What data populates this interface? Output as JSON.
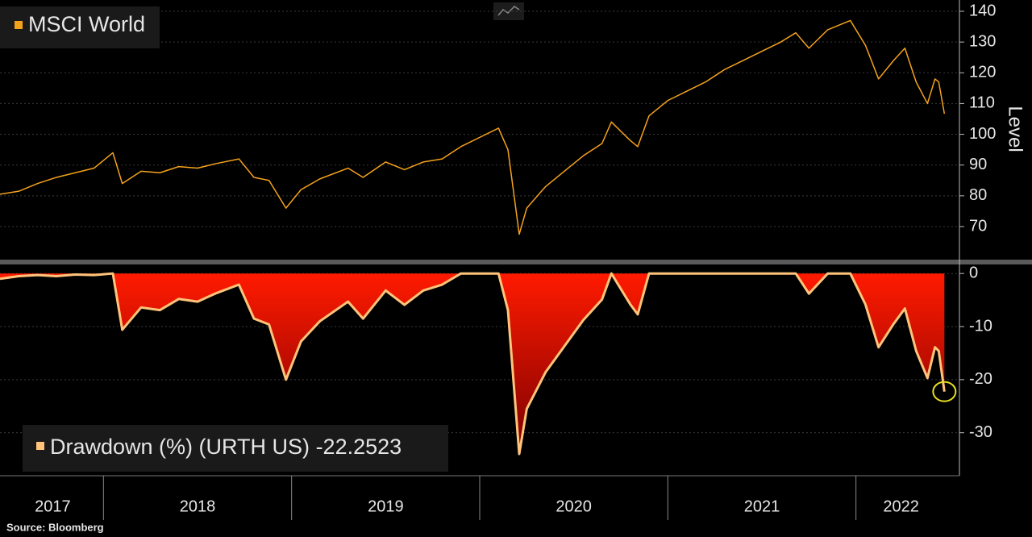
{
  "chart_data": [
    {
      "type": "line",
      "title": "MSCI World",
      "ylabel": "Level",
      "color": "#f5a21b",
      "grid": true,
      "x": [
        2017.45,
        2017.55,
        2017.65,
        2017.75,
        2017.85,
        2017.95,
        2018.05,
        2018.1,
        2018.2,
        2018.3,
        2018.4,
        2018.5,
        2018.6,
        2018.72,
        2018.8,
        2018.88,
        2018.97,
        2019.05,
        2019.15,
        2019.3,
        2019.38,
        2019.5,
        2019.6,
        2019.7,
        2019.8,
        2019.9,
        2020.0,
        2020.1,
        2020.15,
        2020.21,
        2020.25,
        2020.35,
        2020.45,
        2020.55,
        2020.65,
        2020.7,
        2020.8,
        2020.84,
        2020.9,
        2021.0,
        2021.1,
        2021.2,
        2021.3,
        2021.4,
        2021.5,
        2021.6,
        2021.68,
        2021.75,
        2021.85,
        2021.97,
        2022.05,
        2022.12,
        2022.2,
        2022.26,
        2022.32,
        2022.38,
        2022.42,
        2022.44,
        2022.47
      ],
      "values": [
        80.5,
        81.5,
        84,
        86,
        87.5,
        89,
        94,
        84,
        88,
        87.5,
        89.5,
        89,
        90.5,
        92,
        86,
        85,
        76,
        82,
        85.5,
        89,
        86,
        91,
        88.5,
        91,
        92,
        96,
        99,
        102,
        95,
        67.5,
        76,
        83,
        88,
        93,
        97,
        104,
        98,
        96,
        106,
        111,
        114,
        117,
        121,
        124,
        127,
        130,
        133,
        128,
        134,
        137,
        129,
        118,
        124,
        128,
        117,
        110,
        118,
        117,
        106.7
      ],
      "xlim": [
        2017.45,
        2022.55
      ],
      "ylim": [
        59.25,
        143.67
      ],
      "yticks": [
        70,
        80,
        90,
        100,
        110,
        120,
        130,
        140
      ]
    },
    {
      "type": "area",
      "color": "#ffc47a",
      "fill_color": "#ff0000",
      "grid": true,
      "x": [
        2017.45,
        2017.55,
        2017.65,
        2017.75,
        2017.85,
        2017.95,
        2018.05,
        2018.1,
        2018.2,
        2018.3,
        2018.4,
        2018.5,
        2018.6,
        2018.72,
        2018.8,
        2018.88,
        2018.97,
        2019.05,
        2019.15,
        2019.3,
        2019.38,
        2019.5,
        2019.6,
        2019.7,
        2019.8,
        2019.9,
        2020.0,
        2020.1,
        2020.15,
        2020.21,
        2020.25,
        2020.35,
        2020.45,
        2020.55,
        2020.65,
        2020.7,
        2020.8,
        2020.84,
        2020.9,
        2021.0,
        2021.1,
        2021.2,
        2021.3,
        2021.4,
        2021.5,
        2021.6,
        2021.68,
        2021.75,
        2021.85,
        2021.97,
        2022.05,
        2022.12,
        2022.2,
        2022.26,
        2022.32,
        2022.38,
        2022.42,
        2022.44,
        2022.47
      ],
      "series": [
        {
          "name": "Drawdown (%) (URTH US)",
          "values": [
            -1,
            -0.5,
            -0.3,
            -0.5,
            -0.2,
            -0.3,
            0,
            -10.6,
            -6.4,
            -6.9,
            -4.8,
            -5.3,
            -3.7,
            -2.1,
            -8.5,
            -9.6,
            -20,
            -12.8,
            -9,
            -5.3,
            -8.5,
            -3.2,
            -5.9,
            -3.2,
            -2.1,
            0,
            0,
            0,
            -6.9,
            -34,
            -25.5,
            -18.6,
            -13.7,
            -8.8,
            -4.9,
            0,
            -5.8,
            -7.7,
            0,
            0,
            0,
            0,
            0,
            0,
            0,
            0,
            0,
            -3.8,
            0,
            0,
            -5.8,
            -13.9,
            -9.5,
            -6.6,
            -14.6,
            -19.7,
            -13.9,
            -14.6,
            -22.2523
          ]
        }
      ],
      "xlim": [
        2017.45,
        2022.55
      ],
      "ylim": [
        -38.1,
        1.7
      ],
      "yticks": [
        0,
        -10,
        -20,
        -30
      ],
      "xticks": [
        {
          "value": 2017.73,
          "label": "2017"
        },
        {
          "value": 2018.5,
          "label": "2018"
        },
        {
          "value": 2019.5,
          "label": "2019"
        },
        {
          "value": 2020.5,
          "label": "2020"
        },
        {
          "value": 2021.5,
          "label": "2021"
        },
        {
          "value": 2022.24,
          "label": "2022"
        }
      ],
      "xgrid": [
        2018,
        2019,
        2020,
        2021,
        2022
      ]
    }
  ],
  "source": "Source: Bloomberg"
}
